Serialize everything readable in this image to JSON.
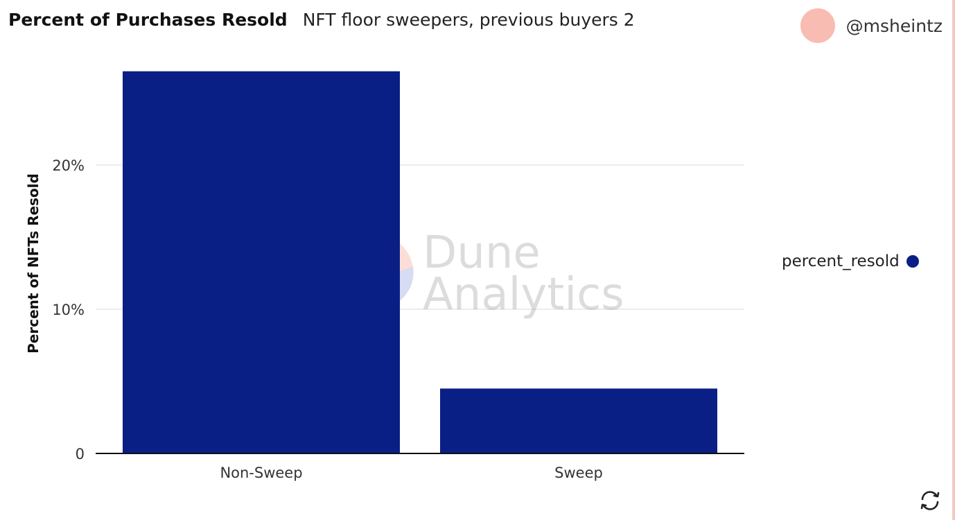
{
  "header": {
    "title": "Percent of Purchases Resold",
    "subtitle": "NFT floor sweepers, previous buyers 2"
  },
  "author": {
    "name": "@msheintz",
    "avatar_color": "#f9bcb2"
  },
  "watermark": {
    "line1": "Dune",
    "line2": "Analytics"
  },
  "legend": {
    "label": "percent_resold",
    "color": "#0a1f86"
  },
  "chart_data": {
    "type": "bar",
    "categories": [
      "Non-Sweep",
      "Sweep"
    ],
    "series": [
      {
        "name": "percent_resold",
        "values": [
          26.5,
          4.5
        ]
      }
    ],
    "ylabel": "Percent of NFTs Resold",
    "xlabel": "",
    "yticks": [
      {
        "value": 0,
        "label": "0"
      },
      {
        "value": 10,
        "label": "10%"
      },
      {
        "value": 20,
        "label": "20%"
      }
    ],
    "ylim": [
      0,
      30
    ],
    "grid": true,
    "legend_position": "right",
    "bar_color": "#0a1f86"
  },
  "icons": {
    "refresh": "refresh-icon"
  }
}
